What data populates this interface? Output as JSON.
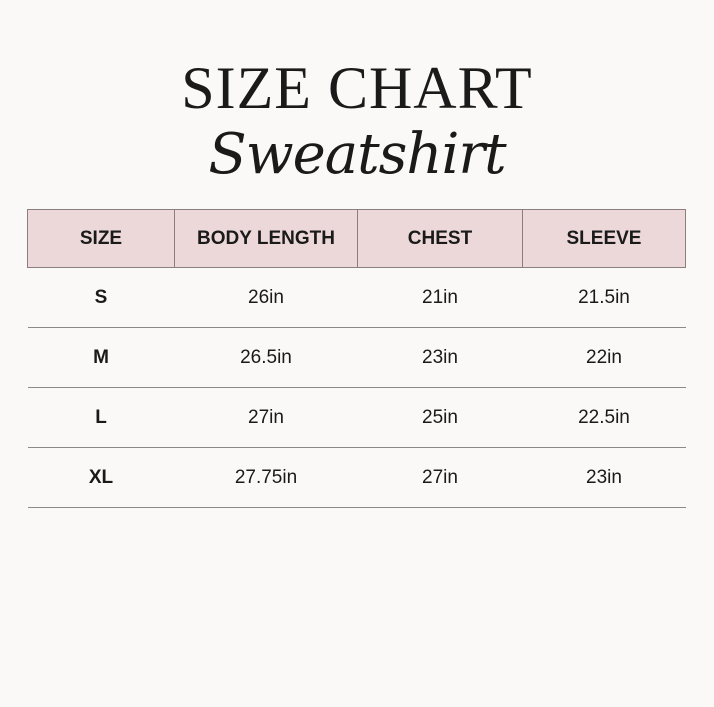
{
  "title": "SIZE CHART",
  "subtitle": "Sweatshirt",
  "colors": {
    "header_bg": "#ecd8d9",
    "background": "#faf9f7",
    "border": "#8a7e7e"
  },
  "table": {
    "headers": [
      "SIZE",
      "BODY LENGTH",
      "CHEST",
      "SLEEVE"
    ],
    "rows": [
      [
        "S",
        "26in",
        "21in",
        "21.5in"
      ],
      [
        "M",
        "26.5in",
        "23in",
        "22in"
      ],
      [
        "L",
        "27in",
        "25in",
        "22.5in"
      ],
      [
        "XL",
        "27.75in",
        "27in",
        "23in"
      ]
    ]
  }
}
